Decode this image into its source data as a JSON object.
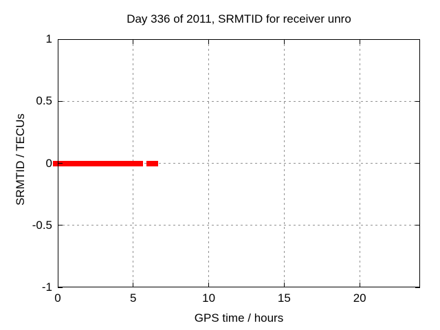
{
  "chart_data": {
    "type": "line",
    "title": "Day 336 of 2011, SRMTID for receiver unro",
    "xlabel": "GPS time / hours",
    "ylabel": "SRMTID / TECUs",
    "xlim": [
      0,
      24
    ],
    "ylim": [
      -1,
      1
    ],
    "xticks": [
      0,
      5,
      10,
      15,
      20
    ],
    "yticks": [
      1,
      0.5,
      0,
      -0.5,
      -1
    ],
    "grid": true,
    "legend": "none",
    "series": [
      {
        "name": "SRMTID",
        "color": "#ff0000",
        "marker": "filled-square",
        "y": 0,
        "segments_hours": [
          {
            "start": -0.3,
            "end": 5.65
          },
          {
            "start": 5.87,
            "end": 6.65
          }
        ]
      }
    ]
  },
  "colors": {
    "background": "#ffffff",
    "axis": "#000000",
    "grid": "#909090",
    "data": "#ff0000",
    "text": "#000000"
  }
}
